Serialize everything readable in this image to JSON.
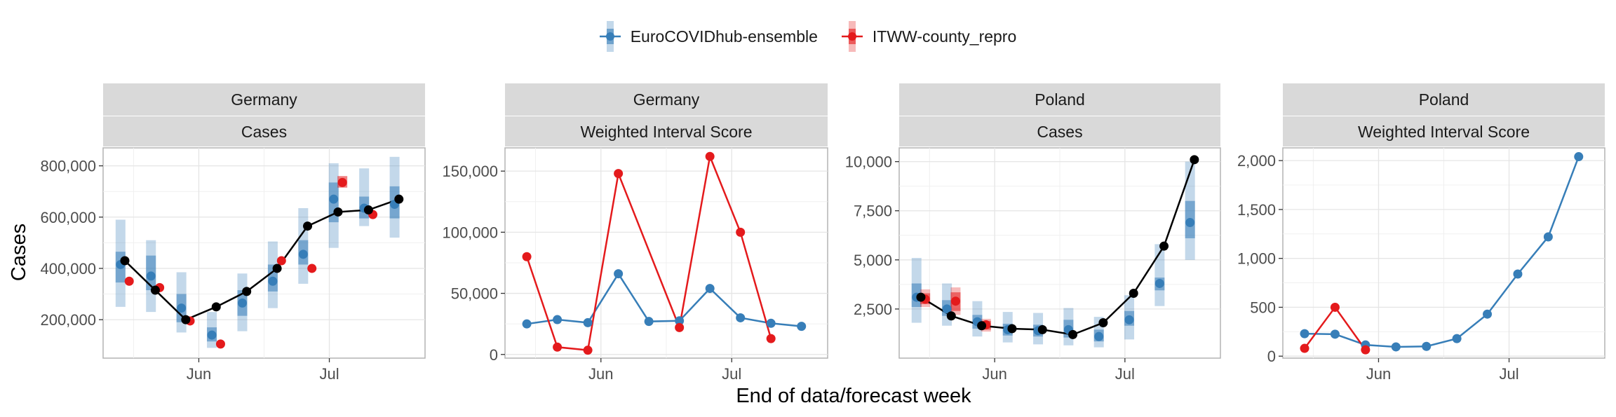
{
  "legend": {
    "items": [
      {
        "label": "EuroCOVIDhub-ensemble",
        "color": "#377EB8"
      },
      {
        "label": "ITWW-county_repro",
        "color": "#E41A1C"
      }
    ]
  },
  "axes": {
    "xlabel": "End of data/forecast week",
    "ylabel": "Cases"
  },
  "chart_data": [
    {
      "type": "line",
      "facet": [
        "Germany",
        "Cases"
      ],
      "x_ticks": [
        {
          "label": "Jun",
          "date": "2021-06-01"
        },
        {
          "label": "Jul",
          "date": "2021-07-01"
        }
      ],
      "xlim": [
        "2021-05-10",
        "2021-07-23"
      ],
      "ylim": [
        50000,
        870000
      ],
      "y_ticks": [
        {
          "v": 200000,
          "t": "200,000"
        },
        {
          "v": 400000,
          "t": "400,000"
        },
        {
          "v": 600000,
          "t": "600,000"
        },
        {
          "v": 800000,
          "t": "800,000"
        }
      ],
      "observed": {
        "x": [
          "2021-05-15",
          "2021-05-22",
          "2021-05-29",
          "2021-06-05",
          "2021-06-12",
          "2021-06-19",
          "2021-06-26",
          "2021-07-03",
          "2021-07-10",
          "2021-07-17"
        ],
        "y": [
          430000,
          315000,
          200000,
          250000,
          310000,
          400000,
          565000,
          620000,
          628000,
          670000
        ]
      },
      "forecasts": [
        {
          "model": "EuroCOVIDhub-ensemble",
          "x": [
            "2021-05-14",
            "2021-05-21",
            "2021-05-28",
            "2021-06-04",
            "2021-06-11",
            "2021-06-18",
            "2021-06-25",
            "2021-07-02",
            "2021-07-09",
            "2021-07-16"
          ],
          "median": [
            415000,
            370000,
            245000,
            140000,
            265000,
            350000,
            455000,
            670000,
            635000,
            650000
          ],
          "lower_50": [
            345000,
            315000,
            190000,
            115000,
            215000,
            310000,
            415000,
            580000,
            595000,
            595000
          ],
          "upper_50": [
            465000,
            450000,
            300000,
            170000,
            315000,
            415000,
            510000,
            735000,
            680000,
            720000
          ],
          "lower_90": [
            250000,
            230000,
            150000,
            90000,
            155000,
            245000,
            340000,
            480000,
            565000,
            520000
          ],
          "upper_90": [
            590000,
            510000,
            385000,
            230000,
            380000,
            505000,
            635000,
            810000,
            790000,
            835000
          ]
        },
        {
          "model": "ITWW-county_repro",
          "x": [
            "2021-05-16",
            "2021-05-23",
            "2021-05-30",
            "2021-06-06",
            "2021-06-13",
            "2021-06-20",
            "2021-06-27",
            "2021-07-04",
            "2021-07-11",
            "2021-07-18"
          ],
          "median": [
            350000,
            325000,
            195000,
            105000,
            null,
            430000,
            400000,
            735000,
            610000,
            null
          ],
          "lower_50": [
            null,
            null,
            null,
            null,
            null,
            null,
            null,
            715000,
            null,
            null
          ],
          "upper_50": [
            null,
            null,
            null,
            null,
            null,
            null,
            null,
            760000,
            null,
            null
          ]
        }
      ]
    },
    {
      "type": "line",
      "facet": [
        "Germany",
        "Weighted Interval Score"
      ],
      "x_ticks": [
        {
          "label": "Jun",
          "date": "2021-06-01"
        },
        {
          "label": "Jul",
          "date": "2021-07-01"
        }
      ],
      "xlim": [
        "2021-05-10",
        "2021-07-23"
      ],
      "ylim": [
        -3000,
        169000
      ],
      "y_ticks": [
        {
          "v": 0,
          "t": "0"
        },
        {
          "v": 50000,
          "t": "50,000"
        },
        {
          "v": 100000,
          "t": "100,000"
        },
        {
          "v": 150000,
          "t": "150,000"
        }
      ],
      "series": [
        {
          "name": "EuroCOVIDhub-ensemble",
          "x": [
            "2021-05-15",
            "2021-05-22",
            "2021-05-29",
            "2021-06-05",
            "2021-06-12",
            "2021-06-19",
            "2021-06-26",
            "2021-07-03",
            "2021-07-10",
            "2021-07-17"
          ],
          "values": [
            25000,
            28500,
            26000,
            66000,
            27000,
            27500,
            54000,
            30000,
            25500,
            23000
          ]
        },
        {
          "name": "ITWW-county_repro",
          "x": [
            "2021-05-15",
            "2021-05-22",
            "2021-05-29",
            "2021-06-05",
            "2021-06-19",
            "2021-06-26",
            "2021-07-03",
            "2021-07-10"
          ],
          "values": [
            80000,
            6000,
            3500,
            148000,
            22000,
            162000,
            100000,
            13000
          ]
        }
      ]
    },
    {
      "type": "line",
      "facet": [
        "Poland",
        "Cases"
      ],
      "x_ticks": [
        {
          "label": "Jun",
          "date": "2021-06-01"
        },
        {
          "label": "Jul",
          "date": "2021-07-01"
        }
      ],
      "xlim": [
        "2021-05-10",
        "2021-07-23"
      ],
      "ylim": [
        0,
        10700
      ],
      "y_ticks": [
        {
          "v": 2500,
          "t": "2,500"
        },
        {
          "v": 5000,
          "t": "5,000"
        },
        {
          "v": 7500,
          "t": "7,500"
        },
        {
          "v": 10000,
          "t": "10,000"
        }
      ],
      "observed": {
        "x": [
          "2021-05-15",
          "2021-05-22",
          "2021-05-29",
          "2021-06-05",
          "2021-06-12",
          "2021-06-19",
          "2021-06-26",
          "2021-07-03",
          "2021-07-10",
          "2021-07-17"
        ],
        "y": [
          3100,
          2150,
          1650,
          1500,
          1450,
          1200,
          1800,
          3300,
          5700,
          10100
        ]
      },
      "forecasts": [
        {
          "model": "EuroCOVIDhub-ensemble",
          "x": [
            "2021-05-14",
            "2021-05-21",
            "2021-05-28",
            "2021-06-04",
            "2021-06-11",
            "2021-06-18",
            "2021-06-25",
            "2021-07-02",
            "2021-07-09",
            "2021-07-16"
          ],
          "median": [
            3100,
            2500,
            1850,
            1450,
            1400,
            1450,
            1100,
            1950,
            3800,
            6900
          ],
          "lower_50": [
            2600,
            2150,
            1500,
            1150,
            1100,
            1050,
            850,
            1650,
            3450,
            6100
          ],
          "upper_50": [
            3800,
            2950,
            2200,
            1750,
            1700,
            1950,
            1450,
            2400,
            4100,
            8000
          ],
          "lower_90": [
            1800,
            1650,
            1100,
            800,
            700,
            650,
            550,
            950,
            2650,
            5000
          ],
          "upper_90": [
            5100,
            3800,
            2900,
            2350,
            2300,
            2550,
            2100,
            3200,
            5800,
            10000
          ]
        },
        {
          "model": "ITWW-county_repro",
          "x": [
            "2021-05-16",
            "2021-05-23",
            "2021-05-30"
          ],
          "median": [
            3000,
            2900,
            1700
          ],
          "lower_50": [
            2750,
            2400,
            1450
          ],
          "upper_50": [
            3300,
            3350,
            1900
          ],
          "lower_90": [
            2600,
            2200,
            1350
          ],
          "upper_90": [
            3500,
            3600,
            2000
          ]
        }
      ]
    },
    {
      "type": "line",
      "facet": [
        "Poland",
        "Weighted Interval Score"
      ],
      "x_ticks": [
        {
          "label": "Jun",
          "date": "2021-06-01"
        },
        {
          "label": "Jul",
          "date": "2021-07-01"
        }
      ],
      "xlim": [
        "2021-05-10",
        "2021-07-23"
      ],
      "ylim": [
        -20,
        2130
      ],
      "y_ticks": [
        {
          "v": 0,
          "t": "0"
        },
        {
          "v": 500,
          "t": "500"
        },
        {
          "v": 1000,
          "t": "1,000"
        },
        {
          "v": 1500,
          "t": "1,500"
        },
        {
          "v": 2000,
          "t": "2,000"
        }
      ],
      "series": [
        {
          "name": "EuroCOVIDhub-ensemble",
          "x": [
            "2021-05-15",
            "2021-05-22",
            "2021-05-29",
            "2021-06-05",
            "2021-06-12",
            "2021-06-19",
            "2021-06-26",
            "2021-07-03",
            "2021-07-10",
            "2021-07-17"
          ],
          "values": [
            230,
            225,
            115,
            95,
            100,
            180,
            430,
            840,
            1220,
            2040
          ]
        },
        {
          "name": "ITWW-county_repro",
          "x": [
            "2021-05-15",
            "2021-05-22",
            "2021-05-29"
          ],
          "values": [
            80,
            500,
            65
          ]
        }
      ]
    }
  ]
}
